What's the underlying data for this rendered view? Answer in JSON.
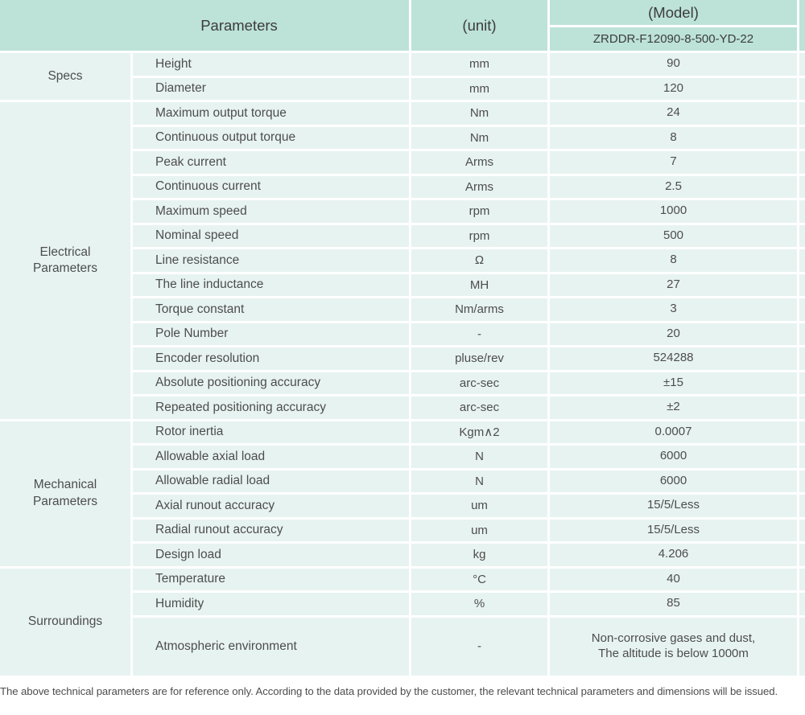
{
  "table": {
    "header": {
      "parameters_label": "Parameters",
      "unit_label": "(unit)",
      "model_label": "(Model)",
      "model_value": "ZRDDR-F12090-8-500-YD-22"
    },
    "sections": [
      {
        "name": "Specs",
        "rows": [
          {
            "param": "Height",
            "unit": "mm",
            "value": "90"
          },
          {
            "param": "Diameter",
            "unit": "mm",
            "value": "120"
          }
        ]
      },
      {
        "name": "Electrical\nParameters",
        "rows": [
          {
            "param": "Maximum output torque",
            "unit": "Nm",
            "value": "24"
          },
          {
            "param": "Continuous output torque",
            "unit": "Nm",
            "value": "8"
          },
          {
            "param": "Peak current",
            "unit": "Arms",
            "value": "7"
          },
          {
            "param": "Continuous current",
            "unit": "Arms",
            "value": "2.5"
          },
          {
            "param": "Maximum speed",
            "unit": "rpm",
            "value": "1000"
          },
          {
            "param": "Nominal speed",
            "unit": "rpm",
            "value": "500"
          },
          {
            "param": "Line resistance",
            "unit": "Ω",
            "value": "8"
          },
          {
            "param": "The line inductance",
            "unit": "MH",
            "value": "27"
          },
          {
            "param": "Torque constant",
            "unit": "Nm/arms",
            "value": "3"
          },
          {
            "param": "Pole Number",
            "unit": "-",
            "value": "20"
          },
          {
            "param": "Encoder resolution",
            "unit": "pluse/rev",
            "value": "524288"
          },
          {
            "param": "Absolute positioning accuracy",
            "unit": "arc-sec",
            "value": "±15"
          },
          {
            "param": "Repeated positioning accuracy",
            "unit": "arc-sec",
            "value": "±2"
          }
        ]
      },
      {
        "name": "Mechanical\nParameters",
        "rows": [
          {
            "param": "Rotor inertia",
            "unit": "Kgm∧2",
            "value": "0.0007"
          },
          {
            "param": "Allowable axial load",
            "unit": "N",
            "value": "6000"
          },
          {
            "param": "Allowable radial load",
            "unit": "N",
            "value": "6000"
          },
          {
            "param": "Axial runout accuracy",
            "unit": "um",
            "value": "15/5/Less"
          },
          {
            "param": "Radial runout accuracy",
            "unit": "um",
            "value": "15/5/Less"
          },
          {
            "param": "Design load",
            "unit": "kg",
            "value": "4.206"
          }
        ]
      },
      {
        "name": "Surroundings",
        "rows": [
          {
            "param": "Temperature",
            "unit": "°C",
            "value": "40"
          },
          {
            "param": "Humidity",
            "unit": "%",
            "value": "85"
          },
          {
            "param": "Atmospheric environment",
            "unit": "-",
            "value": "Non-corrosive gases and dust,\nThe altitude is below 1000m"
          }
        ]
      }
    ],
    "footnote": "The above technical parameters are for reference only. According to the data provided by the customer, the relevant technical parameters and dimensions will be issued.",
    "colors": {
      "header_bg": "#bde2d8",
      "row_bg": "#e7f3f0",
      "divider": "#ffffff",
      "text": "#4d4d4d"
    }
  }
}
